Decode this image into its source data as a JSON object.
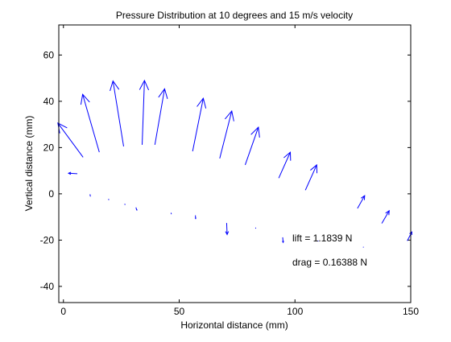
{
  "chart_data": {
    "type": "quiver",
    "title": "Pressure Distribution at 10 degrees and 15 m/s velocity",
    "xlabel": "Horizontal distance (mm)",
    "ylabel": "Vertical distance (mm)",
    "xlim": [
      -2,
      150
    ],
    "ylim": [
      -47,
      73
    ],
    "xticks": [
      0,
      50,
      100,
      150
    ],
    "yticks": [
      -40,
      -20,
      0,
      20,
      40,
      60
    ],
    "grid": false,
    "series": [
      {
        "color": "#0000ff",
        "arrows": [
          {
            "x": 8.5,
            "y": 15.8,
            "dx": -10.9,
            "dy": 14.8
          },
          {
            "x": 15.5,
            "y": 18.0,
            "dx": -7.2,
            "dy": 25.0
          },
          {
            "x": 26.0,
            "y": 20.5,
            "dx": -4.6,
            "dy": 28.3
          },
          {
            "x": 34.0,
            "y": 21.2,
            "dx": 1.0,
            "dy": 27.8
          },
          {
            "x": 39.5,
            "y": 21.2,
            "dx": 4.2,
            "dy": 24.2
          },
          {
            "x": 55.8,
            "y": 18.4,
            "dx": 4.6,
            "dy": 22.9
          },
          {
            "x": 67.5,
            "y": 15.3,
            "dx": 5.2,
            "dy": 20.5
          },
          {
            "x": 78.5,
            "y": 12.5,
            "dx": 5.7,
            "dy": 16.3
          },
          {
            "x": 93.0,
            "y": 6.8,
            "dx": 5.0,
            "dy": 11.2
          },
          {
            "x": 104.5,
            "y": 1.6,
            "dx": 4.9,
            "dy": 10.9
          },
          {
            "x": 127.0,
            "y": -6.3,
            "dx": 3.1,
            "dy": 5.5
          },
          {
            "x": 137.5,
            "y": -12.8,
            "dx": 3.2,
            "dy": 5.5
          },
          {
            "x": 148.5,
            "y": -20.3,
            "dx": 2.0,
            "dy": 3.8
          },
          {
            "x": 6.0,
            "y": 8.7,
            "dx": -3.8,
            "dy": 0.2
          },
          {
            "x": 11.5,
            "y": -0.2,
            "dx": 0.1,
            "dy": -0.7
          },
          {
            "x": 19.5,
            "y": -2.2,
            "dx": 0.1,
            "dy": -0.5
          },
          {
            "x": 26.5,
            "y": -4.3,
            "dx": 0.1,
            "dy": -0.5
          },
          {
            "x": 31.3,
            "y": -5.9,
            "dx": 0.4,
            "dy": -1.1
          },
          {
            "x": 46.5,
            "y": -8.2,
            "dx": 0.1,
            "dy": -0.6
          },
          {
            "x": 57.0,
            "y": -9.3,
            "dx": 0.1,
            "dy": -1.4
          },
          {
            "x": 70.5,
            "y": -12.6,
            "dx": 0.2,
            "dy": -5.0
          },
          {
            "x": 83.0,
            "y": -14.6,
            "dx": 0.1,
            "dy": -0.4
          },
          {
            "x": 94.7,
            "y": -18.8,
            "dx": 0.2,
            "dy": -2.2
          },
          {
            "x": 110.0,
            "y": -20.2,
            "dx": 0.0,
            "dy": -0.3
          },
          {
            "x": 129.5,
            "y": -22.9,
            "dx": 0.1,
            "dy": -0.3
          }
        ]
      }
    ],
    "annotations": [
      {
        "text": "lift = 1.1839 N",
        "x": 100,
        "y": -20
      },
      {
        "text": "drag = 0.16388 N",
        "x": 100,
        "y": -30
      }
    ]
  }
}
